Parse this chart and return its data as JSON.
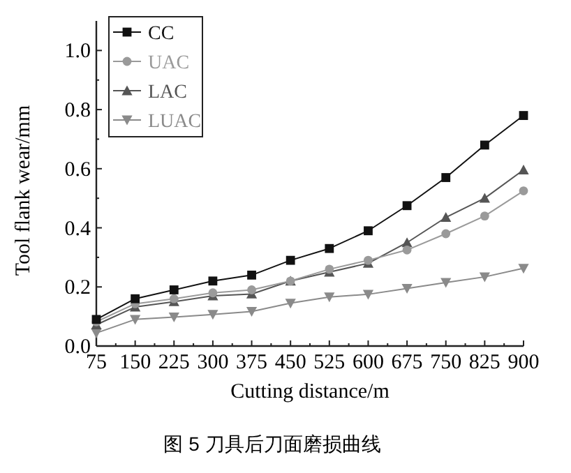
{
  "chart_data": {
    "type": "line",
    "xlabel": "Cutting distance/m",
    "ylabel": "Tool flank wear/mm",
    "annotations": [
      "图 5   刀具后刀面磨损曲线"
    ],
    "x": [
      75,
      150,
      225,
      300,
      375,
      450,
      525,
      600,
      675,
      750,
      825,
      900
    ],
    "xlim": [
      75,
      900
    ],
    "xticks": [
      75,
      150,
      225,
      300,
      375,
      450,
      525,
      600,
      675,
      750,
      825,
      900
    ],
    "ylim": [
      0,
      1.1
    ],
    "yticks": [
      {
        "value": 0,
        "label": "0.0"
      },
      0.2,
      0.4,
      0.6,
      0.8,
      {
        "value": 1,
        "label": "1.0"
      }
    ],
    "legend": "top left",
    "grid": false,
    "line_style": "solid",
    "series": [
      {
        "name": "CC",
        "color": "#111111",
        "marker": "square",
        "values": [
          0.09,
          0.16,
          0.19,
          0.22,
          0.24,
          0.29,
          0.33,
          0.39,
          0.475,
          0.57,
          0.68,
          0.78
        ]
      },
      {
        "name": "UAC",
        "color": "#9a9a9a",
        "marker": "circle",
        "values": [
          0.082,
          0.143,
          0.16,
          0.18,
          0.19,
          0.22,
          0.26,
          0.29,
          0.325,
          0.38,
          0.44,
          0.525
        ]
      },
      {
        "name": "LAC",
        "color": "#555555",
        "marker": "triangle",
        "values": [
          0.072,
          0.132,
          0.15,
          0.17,
          0.176,
          0.22,
          0.25,
          0.28,
          0.35,
          0.435,
          0.5,
          0.596
        ]
      },
      {
        "name": "LUAC",
        "color": "#8a8a8a",
        "marker": "triangle-down",
        "values": [
          0.044,
          0.09,
          0.098,
          0.107,
          0.117,
          0.145,
          0.166,
          0.175,
          0.195,
          0.215,
          0.234,
          0.263
        ]
      }
    ]
  }
}
